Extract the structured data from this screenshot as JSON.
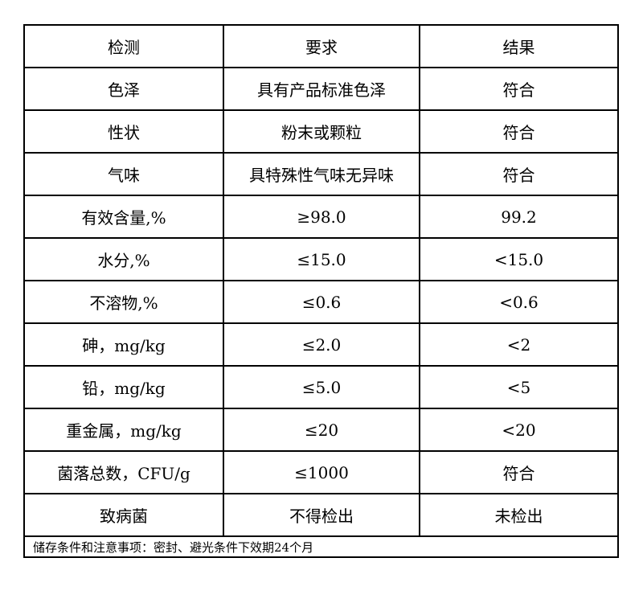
{
  "header": [
    "检测",
    "要求",
    "结果"
  ],
  "rows": [
    [
      "色泽",
      "具有产品标准色泽",
      "符合"
    ],
    [
      "性状",
      "粉末或颗粒",
      "符合"
    ],
    [
      "气味",
      "具特殊性气味无异味",
      "符合"
    ],
    [
      "有效含量,%",
      "≥98.0",
      "99.2"
    ],
    [
      "水分,%",
      "≤15.0",
      "<15.0"
    ],
    [
      "不溶物,%",
      "≤0.6",
      "<0.6"
    ],
    [
      "砷，mg/kg",
      "≤2.0",
      "<2"
    ],
    [
      "铅，mg/kg",
      "≤5.0",
      "<5"
    ],
    [
      "重金属，mg/kg",
      "≤20",
      "<20"
    ],
    [
      "菌落总数，CFU/g",
      "≤1000",
      "符合"
    ],
    [
      "致病菌",
      "不得检出",
      "未检出"
    ]
  ],
  "footer": "储存条件和注意事项：密封、避光条件下效期24个月"
}
